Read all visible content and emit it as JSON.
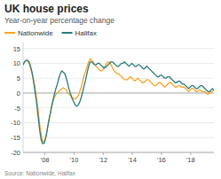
{
  "chart_data": {
    "type": "line",
    "title": "UK house prices",
    "subtitle": "Year-on-year percentage change",
    "source": "Source: Nationwide, Halifax",
    "legend": "top-left",
    "grid": true,
    "xlim": [
      2006.5,
      2019.6
    ],
    "xticks": [
      {
        "value": 2008,
        "label": "'08"
      },
      {
        "value": 2010,
        "label": "'10"
      },
      {
        "value": 2012,
        "label": "'12"
      },
      {
        "value": 2014,
        "label": "'14"
      },
      {
        "value": 2016,
        "label": "'16"
      },
      {
        "value": 2018,
        "label": "'18"
      }
    ],
    "ylim": [
      -20,
      17
    ],
    "yticks": [
      -20,
      -15,
      -10,
      -5,
      0,
      5,
      10,
      15
    ],
    "x": [
      2006.5,
      2006.60234375,
      2006.7046875,
      2006.80703125,
      2006.909375,
      2007.01171875,
      2007.1140625,
      2007.21640625,
      2007.31875,
      2007.42109375,
      2007.5234375,
      2007.62578125,
      2007.728125,
      2007.83046875,
      2007.9328125,
      2008.03515625,
      2008.1375,
      2008.23984375,
      2008.3421875,
      2008.44453125,
      2008.546875,
      2008.64921875,
      2008.7515625,
      2008.85390625,
      2008.95625,
      2009.05859375,
      2009.1609375,
      2009.26328125,
      2009.365625,
      2009.46796875,
      2009.5703125,
      2009.67265625,
      2009.775,
      2009.87734375,
      2009.9796875,
      2010.08203125,
      2010.184375,
      2010.28671875,
      2010.3890625,
      2010.49140625,
      2010.59375,
      2010.69609375,
      2010.7984375,
      2010.90078125,
      2011.003125,
      2011.10546875,
      2011.2078125,
      2011.31015625,
      2011.4125,
      2011.51484375,
      2011.6171875,
      2011.71953125,
      2011.821875,
      2011.92421875,
      2012.0265625,
      2012.12890625,
      2012.23125,
      2012.33359375,
      2012.4359375,
      2012.53828125,
      2012.640625,
      2012.74296875,
      2012.8453125,
      2012.94765625,
      2013.05,
      2013.15234375,
      2013.2546875,
      2013.35703125,
      2013.459375,
      2013.56171875,
      2013.6640625,
      2013.76640625,
      2013.86875,
      2013.97109375,
      2014.0734375,
      2014.17578125,
      2014.278125,
      2014.38046875,
      2014.4828125,
      2014.58515625,
      2014.6875,
      2014.78984375,
      2014.8921875,
      2014.99453125,
      2015.096875,
      2015.19921875,
      2015.3015625,
      2015.40390625,
      2015.50625,
      2015.60859375,
      2015.7109375,
      2015.81328125,
      2015.915625,
      2016.01796875,
      2016.1203125,
      2016.22265625,
      2016.325,
      2016.42734375,
      2016.5296875,
      2016.63203125,
      2016.734375,
      2016.83671875,
      2016.9390625,
      2017.04140625,
      2017.14375,
      2017.24609375,
      2017.3484375,
      2017.45078125,
      2017.553125,
      2017.65546875,
      2017.7578125,
      2017.86015625,
      2017.9625,
      2018.06484375,
      2018.1671875,
      2018.26953125,
      2018.371875,
      2018.47421875,
      2018.5765625,
      2018.67890625,
      2018.78125,
      2018.88359375,
      2018.9859375,
      2019.08828125,
      2019.190625,
      2019.29296875,
      2019.3953125,
      2019.49765625,
      2019.6
    ],
    "series": [
      {
        "name": "Nationwide",
        "color": "#f5a623",
        "values": [
          9.8,
          10.5,
          11.0,
          10.8,
          10.0,
          8.5,
          6.5,
          4.5,
          2.0,
          -1.5,
          -5.5,
          -10.0,
          -13.5,
          -16.0,
          -16.5,
          -15.5,
          -13.0,
          -10.0,
          -7.5,
          -5.0,
          -3.0,
          -1.5,
          -0.5,
          0.0,
          0.5,
          1.0,
          1.5,
          1.8,
          1.5,
          1.0,
          0.0,
          -0.5,
          -1.0,
          -1.5,
          -2.0,
          -2.0,
          -1.5,
          -1.0,
          0.5,
          2.0,
          4.0,
          6.0,
          7.5,
          9.0,
          10.5,
          11.5,
          11.0,
          10.5,
          9.5,
          9.0,
          8.5,
          8.0,
          7.5,
          7.5,
          8.0,
          9.0,
          10.0,
          10.5,
          10.5,
          9.5,
          8.5,
          7.5,
          7.0,
          6.5,
          6.5,
          6.0,
          5.5,
          5.0,
          4.5,
          4.5,
          4.5,
          5.0,
          5.5,
          5.0,
          4.5,
          4.0,
          4.5,
          5.0,
          4.5,
          4.0,
          3.5,
          3.5,
          4.0,
          4.5,
          4.5,
          4.0,
          3.5,
          3.0,
          2.5,
          2.5,
          3.0,
          3.5,
          3.5,
          3.0,
          2.5,
          2.0,
          2.5,
          3.0,
          3.5,
          3.5,
          3.0,
          2.5,
          2.0,
          2.0,
          2.5,
          2.5,
          2.0,
          2.0,
          2.0,
          1.5,
          1.0,
          0.5,
          1.0,
          1.5,
          1.5,
          1.0,
          0.5,
          0.5,
          1.0,
          1.0,
          0.5,
          0.5,
          0.5,
          0.0,
          -0.5,
          0.0,
          0.5,
          0.5,
          1.0
        ]
      },
      {
        "name": "Halifax",
        "color": "#2a7b7b",
        "values": [
          9.5,
          10.5,
          11.0,
          11.0,
          10.5,
          9.0,
          7.0,
          4.0,
          0.5,
          -3.0,
          -7.5,
          -12.0,
          -15.5,
          -17.0,
          -17.0,
          -15.5,
          -13.0,
          -10.0,
          -7.5,
          -5.0,
          -2.5,
          -0.5,
          1.5,
          3.0,
          5.0,
          6.5,
          7.5,
          7.0,
          6.5,
          5.0,
          3.0,
          1.0,
          -0.5,
          -2.0,
          -3.0,
          -4.0,
          -4.5,
          -4.0,
          -3.0,
          -1.5,
          0.5,
          2.5,
          4.5,
          7.0,
          9.0,
          10.5,
          10.5,
          10.0,
          9.5,
          9.5,
          10.0,
          10.0,
          9.5,
          9.0,
          8.5,
          8.5,
          9.0,
          9.5,
          10.0,
          10.5,
          10.5,
          10.0,
          9.5,
          9.0,
          9.0,
          9.5,
          10.0,
          10.0,
          10.5,
          10.0,
          9.5,
          9.0,
          9.5,
          10.0,
          9.5,
          9.0,
          9.0,
          9.5,
          9.5,
          9.0,
          8.5,
          8.0,
          8.5,
          9.0,
          8.5,
          8.0,
          7.5,
          7.0,
          6.5,
          6.0,
          5.5,
          5.5,
          6.0,
          6.0,
          5.5,
          5.0,
          5.0,
          5.5,
          5.5,
          5.0,
          4.5,
          4.0,
          3.5,
          3.5,
          4.0,
          4.0,
          3.5,
          3.0,
          3.0,
          2.5,
          2.0,
          1.5,
          2.0,
          2.5,
          2.5,
          2.0,
          1.5,
          1.5,
          2.0,
          2.5,
          2.5,
          2.0,
          1.5,
          1.0,
          0.5,
          0.5,
          1.0,
          1.5,
          1.0
        ]
      }
    ]
  }
}
